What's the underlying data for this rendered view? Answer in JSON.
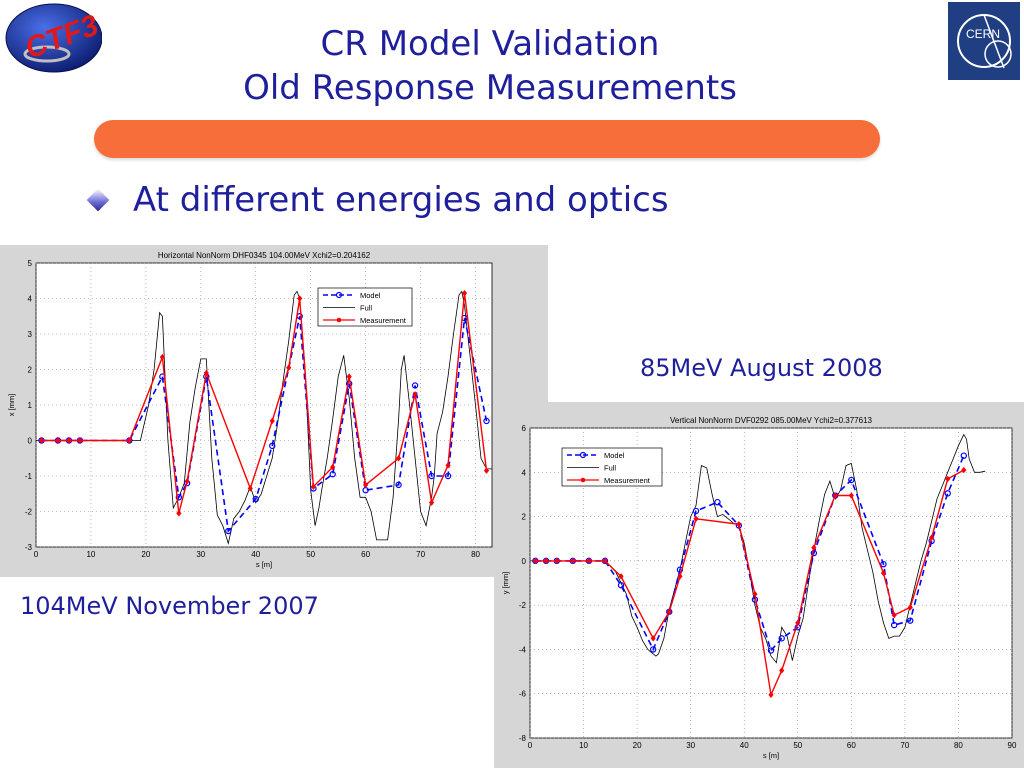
{
  "slide": {
    "title_line1": "CR Model Validation",
    "title_line2": "Old Response Measurements",
    "bullet": "At different energies and optics",
    "caption_left": "104MeV November 2007",
    "caption_right": "85MeV August 2008",
    "logo_left_text": "CTF3",
    "logo_right_text": "CERN",
    "colors": {
      "title": "#1f1f9c",
      "accent_bar": "#f86e3a",
      "model": "#0000ff",
      "measurement": "#ff0000",
      "full": "#000000"
    }
  },
  "chart_data": [
    {
      "type": "line",
      "title": "Horizontal NonNorm  DHF0345 104.00MeV Xchi2=0.204162",
      "xlabel": "s [m]",
      "ylabel": "x [mm]",
      "xlim": [
        0,
        83
      ],
      "ylim": [
        -3,
        5
      ],
      "xticks": [
        0,
        10,
        20,
        30,
        40,
        50,
        60,
        70,
        80
      ],
      "yticks": [
        -3,
        -2,
        -1,
        0,
        1,
        2,
        3,
        4,
        5
      ],
      "grid": true,
      "legend_position": "top-right",
      "series": [
        {
          "name": "Model",
          "style": "dashed-circle",
          "x": [
            1,
            4,
            6,
            8,
            17,
            23,
            26,
            27.5,
            31,
            35,
            40,
            43,
            48,
            50.5,
            54,
            57,
            60,
            66,
            69,
            72,
            75,
            78,
            82
          ],
          "y": [
            0,
            0,
            0,
            0,
            0,
            1.8,
            -1.6,
            -1.2,
            1.8,
            -2.55,
            -1.65,
            -0.15,
            3.5,
            -1.35,
            -0.95,
            1.6,
            -1.4,
            -1.25,
            1.55,
            -1.0,
            -1.0,
            3.45,
            0.55
          ]
        },
        {
          "name": "Full",
          "style": "solid-thin",
          "x": [
            0,
            19,
            20.5,
            21.5,
            22.5,
            23,
            24,
            25,
            26,
            27,
            28,
            29,
            30,
            31,
            32,
            33,
            34,
            35,
            36,
            37,
            38,
            39,
            40,
            41,
            42,
            43,
            44,
            45,
            46,
            47,
            47.5,
            48,
            49,
            50,
            50.8,
            51.5,
            52,
            53,
            54,
            55,
            56,
            57,
            58,
            59,
            60,
            61,
            62,
            63,
            64,
            65,
            66,
            66.5,
            67,
            68,
            69,
            70,
            71,
            72,
            72.5,
            73,
            74,
            75,
            76,
            77,
            77.5,
            78,
            79,
            80,
            81,
            82,
            83
          ],
          "y": [
            0,
            0,
            1,
            2,
            3.6,
            3.5,
            0,
            -1.9,
            -1.6,
            -1.2,
            0.5,
            1.5,
            2.3,
            2.3,
            -0.5,
            -2.1,
            -2.4,
            -2.9,
            -2.2,
            -2.0,
            -1.7,
            -1.3,
            -1.75,
            -1.5,
            -1.0,
            -0.5,
            0.5,
            1.7,
            2.8,
            4.1,
            4.2,
            4.0,
            2.0,
            -1.4,
            -2.4,
            -1.9,
            -1.4,
            -0.5,
            0.6,
            1.8,
            2.4,
            1.2,
            -0.5,
            -1.6,
            -1.6,
            -2.0,
            -2.8,
            -2.8,
            -2.8,
            -1.6,
            0.6,
            2.0,
            2.4,
            1.0,
            -0.5,
            -2.0,
            -2.4,
            -1.6,
            -1.0,
            0.2,
            0.8,
            1.8,
            3.0,
            4.1,
            4.2,
            3.8,
            2.4,
            1.0,
            -0.5,
            -0.8,
            -0.8
          ]
        },
        {
          "name": "Measurement",
          "style": "solid-diamond",
          "x": [
            1,
            4,
            6,
            8,
            17,
            23,
            26,
            27.5,
            31,
            39,
            43,
            46,
            48,
            50.5,
            54,
            57,
            60,
            66,
            69,
            72,
            75,
            78,
            82
          ],
          "y": [
            0,
            0,
            0,
            0,
            0,
            2.35,
            -2.05,
            -1.15,
            1.9,
            -1.35,
            0.55,
            2.05,
            4.0,
            -1.3,
            -0.75,
            1.8,
            -1.25,
            -0.5,
            1.3,
            -1.75,
            -0.7,
            4.15,
            -0.85
          ]
        }
      ]
    },
    {
      "type": "line",
      "title": "Vertical NonNorm  DVF0292 085.00MeV Ychi2=0.377613",
      "xlabel": "s [m]",
      "ylabel": "y [mm]",
      "xlim": [
        0,
        90
      ],
      "ylim": [
        -8,
        6
      ],
      "xticks": [
        0,
        10,
        20,
        30,
        40,
        50,
        60,
        70,
        80,
        90
      ],
      "yticks": [
        -8,
        -6,
        -4,
        -2,
        0,
        2,
        4,
        6
      ],
      "grid": true,
      "legend_position": "top-left",
      "series": [
        {
          "name": "Model",
          "style": "dashed-circle",
          "x": [
            1,
            3,
            5,
            8,
            11,
            14,
            17,
            23,
            26,
            28,
            31,
            35,
            39,
            42,
            45,
            47,
            50,
            53,
            57,
            60,
            66,
            68,
            71,
            75,
            78,
            81
          ],
          "y": [
            0,
            0,
            0,
            0,
            0,
            0,
            -1.1,
            -4.0,
            -2.3,
            -0.4,
            2.25,
            2.65,
            1.6,
            -1.75,
            -4.05,
            -3.5,
            -3.0,
            0.35,
            2.95,
            3.65,
            -0.15,
            -2.9,
            -2.7,
            0.9,
            3.05,
            4.75
          ]
        },
        {
          "name": "Full",
          "style": "solid-thin",
          "x": [
            0,
            14,
            16,
            18,
            19,
            20,
            21,
            22,
            23,
            23.5,
            24,
            25,
            26,
            27,
            28,
            29,
            30,
            31,
            32,
            33,
            34,
            35,
            36,
            37,
            38,
            39,
            40,
            41,
            42,
            43,
            44,
            45,
            46,
            47,
            48,
            49,
            50,
            51,
            52,
            53,
            54,
            55,
            56,
            57,
            58,
            59,
            60,
            61,
            62,
            63,
            64,
            65,
            66,
            67,
            68,
            69,
            70,
            71,
            72,
            73,
            74,
            75,
            76,
            77,
            78,
            79,
            80,
            81,
            81.5,
            82,
            83,
            84,
            85
          ],
          "y": [
            0,
            0,
            -0.5,
            -1.5,
            -2.5,
            -3.0,
            -3.6,
            -4.0,
            -4.2,
            -4.3,
            -4.2,
            -3.5,
            -2.2,
            -1.3,
            -0.4,
            0.8,
            2.0,
            2.5,
            4.3,
            4.2,
            3.0,
            2.0,
            2.1,
            1.9,
            1.7,
            1.6,
            0.8,
            -0.5,
            -2.0,
            -3.0,
            -3.5,
            -4.3,
            -4.6,
            -3.0,
            -3.4,
            -4.5,
            -3.4,
            -2.6,
            -1.0,
            0.5,
            1.8,
            3.0,
            3.6,
            2.8,
            3.2,
            4.3,
            4.4,
            3.2,
            1.5,
            0.5,
            -0.5,
            -1.8,
            -2.8,
            -3.5,
            -3.4,
            -3.4,
            -3.0,
            -2.0,
            -1.0,
            0.0,
            0.8,
            1.8,
            2.8,
            3.4,
            4.0,
            4.6,
            5.2,
            5.7,
            5.5,
            4.6,
            4.0,
            4.0,
            4.05
          ]
        },
        {
          "name": "Measurement",
          "style": "solid-diamond",
          "x": [
            1,
            3,
            5,
            8,
            11,
            14,
            17,
            23,
            26,
            28,
            31,
            39,
            42,
            45,
            47,
            50,
            53,
            57,
            60,
            66,
            68,
            71,
            75,
            78,
            81
          ],
          "y": [
            0,
            0,
            0,
            0,
            0,
            0,
            -0.7,
            -3.5,
            -2.3,
            -0.7,
            1.9,
            1.65,
            -1.5,
            -6.05,
            -4.95,
            -2.8,
            0.6,
            2.95,
            2.95,
            -0.55,
            -2.45,
            -2.1,
            1.05,
            3.7,
            4.1
          ]
        }
      ]
    }
  ]
}
